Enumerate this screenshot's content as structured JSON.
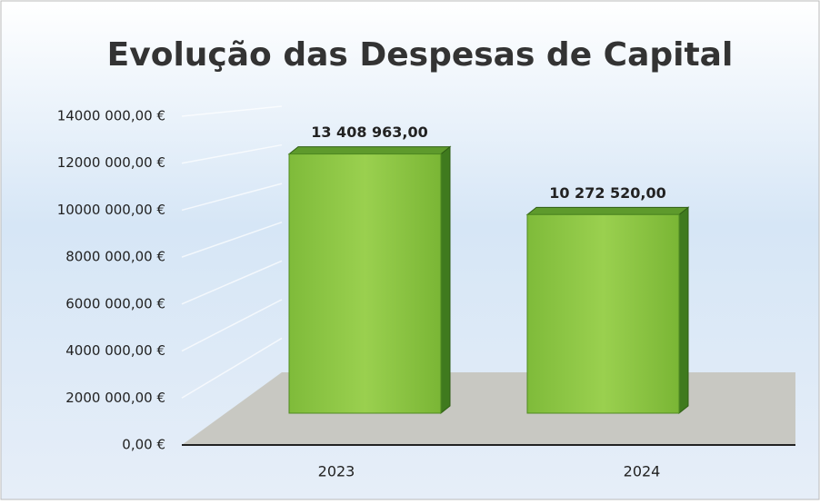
{
  "chart_data": {
    "type": "bar",
    "title": "Evolução das Despesas de Capital",
    "categories": [
      "2023",
      "2024"
    ],
    "values": [
      13408963,
      10272520
    ],
    "value_labels": [
      "13 408 963,00",
      "10 272 520,00"
    ],
    "color": "#8cc63f",
    "ylim": [
      0,
      14000000
    ],
    "yticks": [
      {
        "value": 0,
        "label": "0,00 €"
      },
      {
        "value": 2000000,
        "label": "2000 000,00 €"
      },
      {
        "value": 4000000,
        "label": "4000 000,00 €"
      },
      {
        "value": 6000000,
        "label": "6000 000,00 €"
      },
      {
        "value": 8000000,
        "label": "8000 000,00 €"
      },
      {
        "value": 10000000,
        "label": "10000 000,00 €"
      },
      {
        "value": 12000000,
        "label": "12000 000,00 €"
      },
      {
        "value": 14000000,
        "label": "14000 000,00 €"
      }
    ],
    "grid": true
  }
}
